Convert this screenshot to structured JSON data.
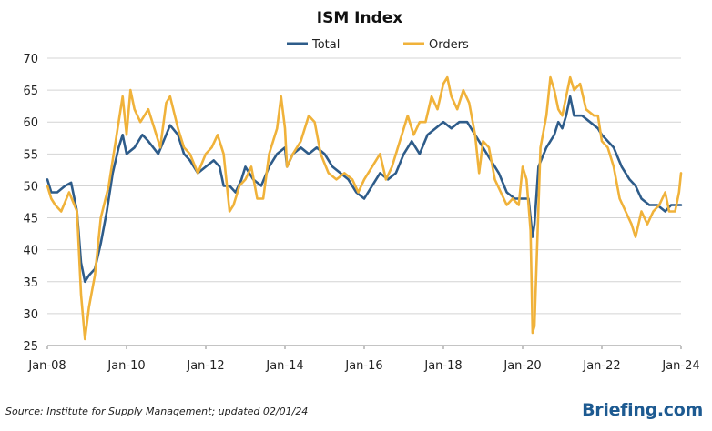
{
  "chart_data": {
    "type": "line",
    "title": "ISM Index",
    "xlabel": "",
    "ylabel": "",
    "ylim": [
      25,
      70
    ],
    "yticks": [
      25,
      30,
      35,
      40,
      45,
      50,
      55,
      60,
      65,
      70
    ],
    "xlim": [
      2008.0,
      2024.0
    ],
    "xticks": [
      {
        "value": 2008,
        "label": "Jan-08"
      },
      {
        "value": 2010,
        "label": "Jan-10"
      },
      {
        "value": 2012,
        "label": "Jan-12"
      },
      {
        "value": 2014,
        "label": "Jan-14"
      },
      {
        "value": 2016,
        "label": "Jan-16"
      },
      {
        "value": 2018,
        "label": "Jan-18"
      },
      {
        "value": 2020,
        "label": "Jan-20"
      },
      {
        "value": 2022,
        "label": "Jan-22"
      },
      {
        "value": 2024,
        "label": "Jan-24"
      }
    ],
    "grid": "horizontal",
    "legend": "top-center",
    "series": [
      {
        "name": "Total",
        "color": "#2e5c8a",
        "points": [
          [
            2008.0,
            51
          ],
          [
            2008.1,
            49
          ],
          [
            2008.25,
            49
          ],
          [
            2008.45,
            50
          ],
          [
            2008.6,
            50.5
          ],
          [
            2008.75,
            46
          ],
          [
            2008.85,
            38
          ],
          [
            2008.95,
            35
          ],
          [
            2009.05,
            36
          ],
          [
            2009.2,
            37
          ],
          [
            2009.35,
            41
          ],
          [
            2009.5,
            46
          ],
          [
            2009.65,
            52
          ],
          [
            2009.8,
            56
          ],
          [
            2009.9,
            58
          ],
          [
            2010.0,
            55
          ],
          [
            2010.2,
            56
          ],
          [
            2010.4,
            58
          ],
          [
            2010.55,
            57
          ],
          [
            2010.8,
            55
          ],
          [
            2011.0,
            58
          ],
          [
            2011.1,
            59.5
          ],
          [
            2011.3,
            58
          ],
          [
            2011.45,
            55
          ],
          [
            2011.6,
            54
          ],
          [
            2011.8,
            52
          ],
          [
            2012.0,
            53
          ],
          [
            2012.2,
            54
          ],
          [
            2012.35,
            53
          ],
          [
            2012.45,
            50
          ],
          [
            2012.6,
            50
          ],
          [
            2012.75,
            49
          ],
          [
            2012.9,
            51
          ],
          [
            2013.0,
            53
          ],
          [
            2013.2,
            51
          ],
          [
            2013.4,
            50
          ],
          [
            2013.6,
            53
          ],
          [
            2013.8,
            55
          ],
          [
            2014.0,
            56
          ],
          [
            2014.05,
            53
          ],
          [
            2014.2,
            55
          ],
          [
            2014.4,
            56
          ],
          [
            2014.6,
            55
          ],
          [
            2014.8,
            56
          ],
          [
            2015.0,
            55
          ],
          [
            2015.2,
            53
          ],
          [
            2015.4,
            52
          ],
          [
            2015.6,
            51
          ],
          [
            2015.8,
            49
          ],
          [
            2016.0,
            48
          ],
          [
            2016.2,
            50
          ],
          [
            2016.4,
            52
          ],
          [
            2016.6,
            51
          ],
          [
            2016.8,
            52
          ],
          [
            2017.0,
            55
          ],
          [
            2017.2,
            57
          ],
          [
            2017.4,
            55
          ],
          [
            2017.6,
            58
          ],
          [
            2017.8,
            59
          ],
          [
            2018.0,
            60
          ],
          [
            2018.2,
            59
          ],
          [
            2018.4,
            60
          ],
          [
            2018.6,
            60
          ],
          [
            2018.8,
            58
          ],
          [
            2019.0,
            56
          ],
          [
            2019.2,
            54
          ],
          [
            2019.4,
            52
          ],
          [
            2019.6,
            49
          ],
          [
            2019.8,
            48
          ],
          [
            2020.0,
            48
          ],
          [
            2020.15,
            48
          ],
          [
            2020.25,
            42
          ],
          [
            2020.3,
            44
          ],
          [
            2020.4,
            53
          ],
          [
            2020.6,
            56
          ],
          [
            2020.8,
            58
          ],
          [
            2020.9,
            60
          ],
          [
            2021.0,
            59
          ],
          [
            2021.1,
            61
          ],
          [
            2021.2,
            64
          ],
          [
            2021.3,
            61
          ],
          [
            2021.5,
            61
          ],
          [
            2021.7,
            60
          ],
          [
            2021.9,
            59
          ],
          [
            2022.0,
            58
          ],
          [
            2022.15,
            57
          ],
          [
            2022.3,
            56
          ],
          [
            2022.5,
            53
          ],
          [
            2022.7,
            51
          ],
          [
            2022.85,
            50
          ],
          [
            2023.0,
            48
          ],
          [
            2023.2,
            47
          ],
          [
            2023.4,
            47
          ],
          [
            2023.6,
            46
          ],
          [
            2023.75,
            47
          ],
          [
            2023.9,
            47
          ],
          [
            2024.0,
            47
          ]
        ]
      },
      {
        "name": "Orders",
        "color": "#f0b23a",
        "points": [
          [
            2008.0,
            50
          ],
          [
            2008.1,
            48
          ],
          [
            2008.2,
            47
          ],
          [
            2008.35,
            46
          ],
          [
            2008.55,
            49
          ],
          [
            2008.75,
            46
          ],
          [
            2008.85,
            33
          ],
          [
            2008.95,
            26
          ],
          [
            2009.05,
            31
          ],
          [
            2009.2,
            36
          ],
          [
            2009.35,
            45
          ],
          [
            2009.55,
            50
          ],
          [
            2009.75,
            58
          ],
          [
            2009.9,
            64
          ],
          [
            2010.0,
            58
          ],
          [
            2010.1,
            65
          ],
          [
            2010.2,
            62
          ],
          [
            2010.35,
            60
          ],
          [
            2010.55,
            62
          ],
          [
            2010.7,
            59
          ],
          [
            2010.85,
            56
          ],
          [
            2011.0,
            63
          ],
          [
            2011.1,
            64
          ],
          [
            2011.3,
            59
          ],
          [
            2011.45,
            56
          ],
          [
            2011.6,
            55
          ],
          [
            2011.8,
            52
          ],
          [
            2012.0,
            55
          ],
          [
            2012.15,
            56
          ],
          [
            2012.3,
            58
          ],
          [
            2012.45,
            55
          ],
          [
            2012.6,
            46
          ],
          [
            2012.7,
            47
          ],
          [
            2012.85,
            50
          ],
          [
            2013.0,
            51
          ],
          [
            2013.15,
            53
          ],
          [
            2013.3,
            48
          ],
          [
            2013.45,
            48
          ],
          [
            2013.6,
            55
          ],
          [
            2013.8,
            59
          ],
          [
            2013.9,
            64
          ],
          [
            2014.0,
            59
          ],
          [
            2014.05,
            53
          ],
          [
            2014.2,
            55
          ],
          [
            2014.4,
            57
          ],
          [
            2014.6,
            61
          ],
          [
            2014.75,
            60
          ],
          [
            2014.9,
            55
          ],
          [
            2015.1,
            52
          ],
          [
            2015.3,
            51
          ],
          [
            2015.5,
            52
          ],
          [
            2015.7,
            51
          ],
          [
            2015.85,
            49
          ],
          [
            2016.0,
            51
          ],
          [
            2016.2,
            53
          ],
          [
            2016.4,
            55
          ],
          [
            2016.55,
            51
          ],
          [
            2016.7,
            53
          ],
          [
            2016.85,
            56
          ],
          [
            2017.0,
            59
          ],
          [
            2017.1,
            61
          ],
          [
            2017.25,
            58
          ],
          [
            2017.4,
            60
          ],
          [
            2017.55,
            60
          ],
          [
            2017.7,
            64
          ],
          [
            2017.85,
            62
          ],
          [
            2018.0,
            66
          ],
          [
            2018.1,
            67
          ],
          [
            2018.2,
            64
          ],
          [
            2018.35,
            62
          ],
          [
            2018.5,
            65
          ],
          [
            2018.65,
            63
          ],
          [
            2018.8,
            58
          ],
          [
            2018.9,
            52
          ],
          [
            2019.0,
            57
          ],
          [
            2019.15,
            56
          ],
          [
            2019.3,
            51
          ],
          [
            2019.45,
            49
          ],
          [
            2019.6,
            47
          ],
          [
            2019.75,
            48
          ],
          [
            2019.9,
            47
          ],
          [
            2020.0,
            53
          ],
          [
            2020.1,
            51
          ],
          [
            2020.2,
            43
          ],
          [
            2020.25,
            27
          ],
          [
            2020.3,
            28
          ],
          [
            2020.45,
            56
          ],
          [
            2020.6,
            61
          ],
          [
            2020.7,
            67
          ],
          [
            2020.8,
            65
          ],
          [
            2020.9,
            62
          ],
          [
            2021.0,
            61
          ],
          [
            2021.1,
            64
          ],
          [
            2021.2,
            67
          ],
          [
            2021.3,
            65
          ],
          [
            2021.45,
            66
          ],
          [
            2021.6,
            62
          ],
          [
            2021.8,
            61
          ],
          [
            2021.9,
            61
          ],
          [
            2022.0,
            57
          ],
          [
            2022.15,
            56
          ],
          [
            2022.3,
            53
          ],
          [
            2022.45,
            48
          ],
          [
            2022.6,
            46
          ],
          [
            2022.75,
            44
          ],
          [
            2022.85,
            42
          ],
          [
            2023.0,
            46
          ],
          [
            2023.15,
            44
          ],
          [
            2023.3,
            46
          ],
          [
            2023.45,
            47
          ],
          [
            2023.6,
            49
          ],
          [
            2023.7,
            46
          ],
          [
            2023.85,
            46
          ],
          [
            2023.95,
            49
          ],
          [
            2024.0,
            52
          ]
        ]
      }
    ]
  },
  "footer": {
    "source": "Source: Institute for Supply Management; updated 02/01/24",
    "brand": "Briefing.com"
  }
}
